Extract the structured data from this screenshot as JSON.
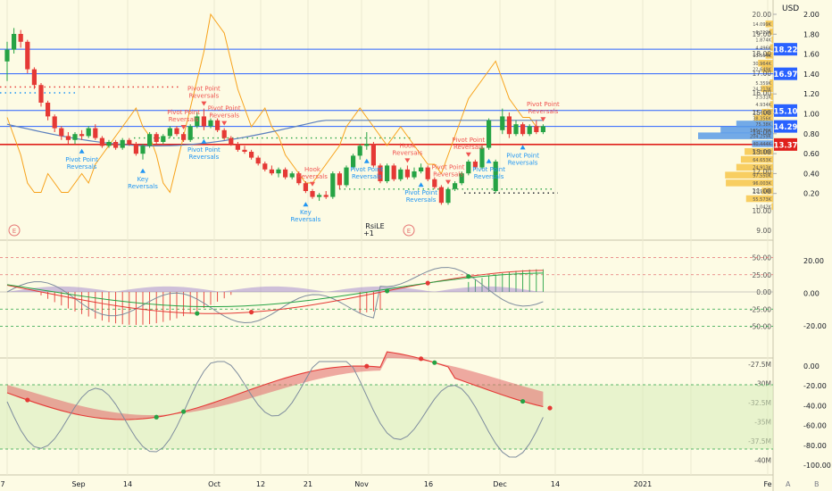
{
  "chart_data": [
    {
      "type": "candlestick",
      "title": "",
      "currency": "USD",
      "left_axis_ticks": [
        "20.00",
        "19.00",
        "18.00",
        "17.00",
        "16.00",
        "15.00",
        "14.00",
        "13.00",
        "12.00",
        "11.00",
        "10.00",
        "9.00"
      ],
      "right_axis_ticks": [
        "2.00",
        "1.80",
        "1.60",
        "1.40",
        "1.20",
        "1.00",
        "0.80",
        "0.60",
        "0.40",
        "0.20"
      ],
      "price_tags": [
        {
          "value": "18.22",
          "color": "#2962ff"
        },
        {
          "value": "16.97",
          "color": "#2962ff"
        },
        {
          "value": "15.10",
          "color": "#2962ff"
        },
        {
          "value": "14.29",
          "color": "#2962ff"
        },
        {
          "value": "13.37",
          "color": "#e0201b"
        }
      ],
      "volume_profile_labels": [
        "14.099K",
        "6.312K",
        "1.874K",
        "4.496K",
        "13.504K",
        "30.964K",
        "22.649K",
        "5.359K",
        "24.213K",
        "3.531K",
        "4.934K",
        "23.414K",
        "38.356K",
        "75.38K",
        "105.176K",
        "204.259K",
        "40.444K",
        "57.533K",
        "64.653K",
        "74.913K",
        "97.550K",
        "96.003K",
        "21.914K",
        "55.573K",
        "1.042K"
      ],
      "ohlc": [
        {
          "o": 17.6,
          "h": 18.6,
          "l": 16.6,
          "c": 18.2
        },
        {
          "o": 18.2,
          "h": 19.3,
          "l": 18.0,
          "c": 19.0
        },
        {
          "o": 19.0,
          "h": 19.2,
          "l": 18.3,
          "c": 18.6
        },
        {
          "o": 18.6,
          "h": 18.7,
          "l": 17.0,
          "c": 17.2
        },
        {
          "o": 17.2,
          "h": 17.3,
          "l": 16.2,
          "c": 16.4
        },
        {
          "o": 16.4,
          "h": 16.5,
          "l": 15.3,
          "c": 15.5
        },
        {
          "o": 15.5,
          "h": 15.6,
          "l": 14.6,
          "c": 14.8
        },
        {
          "o": 14.8,
          "h": 14.9,
          "l": 14.0,
          "c": 14.2
        },
        {
          "o": 14.2,
          "h": 14.3,
          "l": 13.6,
          "c": 13.8
        },
        {
          "o": 13.8,
          "h": 14.0,
          "l": 13.4,
          "c": 13.6
        },
        {
          "o": 13.6,
          "h": 14.0,
          "l": 13.4,
          "c": 13.9
        },
        {
          "o": 13.9,
          "h": 14.1,
          "l": 13.6,
          "c": 13.8
        },
        {
          "o": 13.8,
          "h": 14.3,
          "l": 13.7,
          "c": 14.2
        },
        {
          "o": 14.2,
          "h": 14.4,
          "l": 13.6,
          "c": 13.7
        },
        {
          "o": 13.7,
          "h": 13.8,
          "l": 13.2,
          "c": 13.3
        },
        {
          "o": 13.3,
          "h": 13.6,
          "l": 13.2,
          "c": 13.5
        },
        {
          "o": 13.5,
          "h": 13.6,
          "l": 13.1,
          "c": 13.2
        },
        {
          "o": 13.2,
          "h": 13.7,
          "l": 13.1,
          "c": 13.6
        },
        {
          "o": 13.6,
          "h": 13.7,
          "l": 13.3,
          "c": 13.4
        },
        {
          "o": 13.4,
          "h": 13.5,
          "l": 12.8,
          "c": 12.9
        },
        {
          "o": 12.9,
          "h": 13.4,
          "l": 12.6,
          "c": 13.3
        },
        {
          "o": 13.3,
          "h": 14.0,
          "l": 13.2,
          "c": 13.9
        },
        {
          "o": 13.9,
          "h": 14.0,
          "l": 13.4,
          "c": 13.5
        },
        {
          "o": 13.5,
          "h": 13.9,
          "l": 13.4,
          "c": 13.8
        },
        {
          "o": 13.8,
          "h": 14.3,
          "l": 13.7,
          "c": 14.2
        },
        {
          "o": 14.2,
          "h": 14.3,
          "l": 13.8,
          "c": 13.9
        },
        {
          "o": 13.9,
          "h": 14.0,
          "l": 13.5,
          "c": 13.6
        },
        {
          "o": 13.6,
          "h": 14.4,
          "l": 13.5,
          "c": 14.3
        },
        {
          "o": 14.3,
          "h": 15.0,
          "l": 14.2,
          "c": 14.8
        },
        {
          "o": 14.8,
          "h": 15.2,
          "l": 14.1,
          "c": 14.3
        },
        {
          "o": 14.3,
          "h": 14.7,
          "l": 14.2,
          "c": 14.6
        },
        {
          "o": 14.6,
          "h": 14.7,
          "l": 14.0,
          "c": 14.1
        },
        {
          "o": 14.1,
          "h": 14.2,
          "l": 13.6,
          "c": 13.7
        },
        {
          "o": 13.7,
          "h": 13.8,
          "l": 13.3,
          "c": 13.4
        },
        {
          "o": 13.4,
          "h": 13.5,
          "l": 13.0,
          "c": 13.1
        },
        {
          "o": 13.1,
          "h": 13.3,
          "l": 12.9,
          "c": 13.0
        },
        {
          "o": 13.0,
          "h": 13.1,
          "l": 12.6,
          "c": 12.7
        },
        {
          "o": 12.7,
          "h": 12.8,
          "l": 12.3,
          "c": 12.4
        },
        {
          "o": 12.4,
          "h": 12.5,
          "l": 12.0,
          "c": 12.1
        },
        {
          "o": 12.1,
          "h": 12.3,
          "l": 11.8,
          "c": 11.9
        },
        {
          "o": 11.9,
          "h": 12.2,
          "l": 11.7,
          "c": 12.1
        },
        {
          "o": 12.1,
          "h": 12.2,
          "l": 11.6,
          "c": 11.7
        },
        {
          "o": 11.7,
          "h": 12.0,
          "l": 11.6,
          "c": 11.9
        },
        {
          "o": 11.9,
          "h": 12.0,
          "l": 11.3,
          "c": 11.4
        },
        {
          "o": 11.4,
          "h": 11.5,
          "l": 10.9,
          "c": 11.0
        },
        {
          "o": 11.0,
          "h": 11.1,
          "l": 10.6,
          "c": 10.7
        },
        {
          "o": 10.7,
          "h": 10.9,
          "l": 10.5,
          "c": 10.8
        },
        {
          "o": 10.8,
          "h": 11.0,
          "l": 10.6,
          "c": 10.7
        },
        {
          "o": 10.7,
          "h": 12.0,
          "l": 10.6,
          "c": 11.9
        },
        {
          "o": 11.9,
          "h": 12.0,
          "l": 11.1,
          "c": 11.3
        },
        {
          "o": 11.3,
          "h": 12.3,
          "l": 11.2,
          "c": 12.2
        },
        {
          "o": 12.2,
          "h": 12.9,
          "l": 12.1,
          "c": 12.8
        },
        {
          "o": 12.8,
          "h": 13.4,
          "l": 12.6,
          "c": 13.3
        },
        {
          "o": 13.3,
          "h": 14.0,
          "l": 13.1,
          "c": 13.4
        },
        {
          "o": 13.4,
          "h": 13.5,
          "l": 12.2,
          "c": 12.3
        },
        {
          "o": 12.3,
          "h": 12.4,
          "l": 11.4,
          "c": 11.5
        },
        {
          "o": 11.5,
          "h": 12.4,
          "l": 11.4,
          "c": 12.3
        },
        {
          "o": 12.3,
          "h": 12.4,
          "l": 11.5,
          "c": 11.6
        },
        {
          "o": 11.6,
          "h": 12.2,
          "l": 11.5,
          "c": 12.1
        },
        {
          "o": 12.1,
          "h": 12.3,
          "l": 11.6,
          "c": 11.7
        },
        {
          "o": 11.7,
          "h": 12.2,
          "l": 11.6,
          "c": 12.0
        },
        {
          "o": 12.0,
          "h": 12.4,
          "l": 11.9,
          "c": 12.2
        },
        {
          "o": 12.2,
          "h": 12.3,
          "l": 11.5,
          "c": 11.6
        },
        {
          "o": 11.6,
          "h": 11.7,
          "l": 11.1,
          "c": 11.2
        },
        {
          "o": 11.2,
          "h": 11.3,
          "l": 10.3,
          "c": 10.4
        },
        {
          "o": 10.4,
          "h": 11.2,
          "l": 10.3,
          "c": 11.1
        },
        {
          "o": 11.1,
          "h": 11.5,
          "l": 11.0,
          "c": 11.4
        },
        {
          "o": 11.4,
          "h": 12.0,
          "l": 11.3,
          "c": 11.9
        },
        {
          "o": 11.9,
          "h": 12.6,
          "l": 11.8,
          "c": 12.5
        },
        {
          "o": 12.5,
          "h": 12.6,
          "l": 12.1,
          "c": 12.2
        },
        {
          "o": 12.2,
          "h": 13.3,
          "l": 12.1,
          "c": 13.2
        },
        {
          "o": 13.2,
          "h": 14.7,
          "l": 13.1,
          "c": 14.6
        },
        {
          "o": 11.0,
          "h": 12.6,
          "l": 10.9,
          "c": 12.5
        },
        {
          "o": 14.1,
          "h": 15.2,
          "l": 13.9,
          "c": 14.8
        },
        {
          "o": 14.8,
          "h": 15.0,
          "l": 13.7,
          "c": 13.9
        },
        {
          "o": 13.9,
          "h": 14.6,
          "l": 13.8,
          "c": 14.4
        },
        {
          "o": 14.4,
          "h": 14.5,
          "l": 13.8,
          "c": 13.9
        },
        {
          "o": 13.9,
          "h": 14.4,
          "l": 13.8,
          "c": 14.3
        },
        {
          "o": 14.3,
          "h": 14.6,
          "l": 13.9,
          "c": 14.0
        },
        {
          "o": 14.0,
          "h": 14.4,
          "l": 13.9,
          "c": 14.3
        }
      ],
      "signals": [
        {
          "text": "Pivot Point\nReversals",
          "kind": "up",
          "color": "#2196f3",
          "bar": 11
        },
        {
          "text": "Key\nReversals",
          "kind": "up",
          "color": "#2196f3",
          "bar": 20
        },
        {
          "text": "Pivot Point\nReversals",
          "kind": "down",
          "color": "#f05350",
          "bar": 26
        },
        {
          "text": "Pivot Point\nReversals",
          "kind": "down",
          "color": "#f05350",
          "bar": 29
        },
        {
          "text": "Pivot Point\nReversals",
          "kind": "up",
          "color": "#2196f3",
          "bar": 29
        },
        {
          "text": "Pivot Point\nReversals",
          "kind": "down",
          "color": "#f05350",
          "bar": 32
        },
        {
          "text": "Hook\nReversals",
          "kind": "down",
          "color": "#f05350",
          "bar": 45
        },
        {
          "text": "Key\nReversals",
          "kind": "up",
          "color": "#2196f3",
          "bar": 44
        },
        {
          "text": "Pivot Point\nReversals",
          "kind": "up",
          "color": "#2196f3",
          "bar": 53
        },
        {
          "text": "Hook\nReversals",
          "kind": "down",
          "color": "#f05350",
          "bar": 59
        },
        {
          "text": "Pivot Point\nReversals",
          "kind": "down",
          "color": "#f05350",
          "bar": 65
        },
        {
          "text": "Pivot Point\nReversals",
          "kind": "down",
          "color": "#f05350",
          "bar": 68
        },
        {
          "text": "Pivot Point\nReversals",
          "kind": "up",
          "color": "#2196f3",
          "bar": 61
        },
        {
          "text": "Pivot Point\nReversals",
          "kind": "up",
          "color": "#2196f3",
          "bar": 71
        },
        {
          "text": "Pivot Point\nReversals",
          "kind": "up",
          "color": "#2196f3",
          "bar": 76
        },
        {
          "text": "Pivot Point\nReversals",
          "kind": "down",
          "color": "#f05350",
          "bar": 79
        }
      ],
      "annotations": [
        {
          "text": "RsiLE",
          "color": "#131722"
        },
        {
          "text": "+1",
          "color": "#131722"
        }
      ],
      "events": [
        "E",
        "E"
      ]
    },
    {
      "type": "oscillator",
      "left_axis_ticks": [
        "50.00",
        "25.00",
        "0.00",
        "-25.00",
        "-50.00"
      ],
      "right_axis_ticks": [
        "20.00",
        "0.00",
        "-20.00"
      ]
    },
    {
      "type": "oscillator",
      "left_axis_ticks": [
        "-27.5M",
        "-30M",
        "-32.5M",
        "-35M",
        "-37.5M",
        "-40M"
      ],
      "right_axis_ticks": [
        "0.00",
        "-20.00",
        "-40.00",
        "-60.00",
        "-80.00",
        "-100.00"
      ]
    }
  ],
  "time_axis": [
    "7",
    "Sep",
    "14",
    "Oct",
    "12",
    "21",
    "Nov",
    "16",
    "Dec",
    "14",
    "2021",
    "Fe"
  ],
  "status": {
    "zoom_label": "A",
    "corner_label": "B"
  },
  "colors": {
    "up": "#26a344",
    "down": "#e53935",
    "background": "#fdfbe4",
    "orange": "#f7a21b",
    "blue_line": "#5b7fbe",
    "grey_line": "#7e8c9e",
    "accent": "#2962ff"
  }
}
